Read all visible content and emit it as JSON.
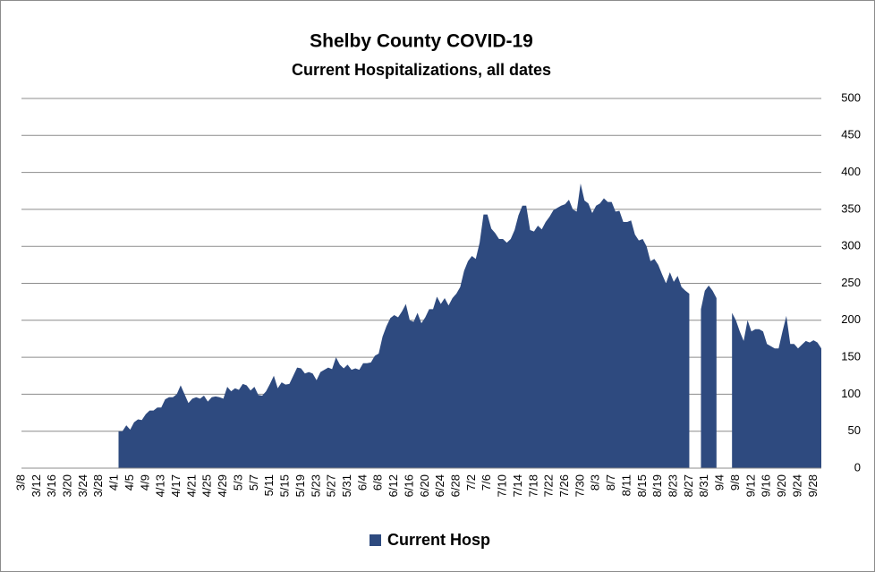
{
  "chart_data": {
    "type": "area",
    "title": "Shelby County COVID-19",
    "subtitle": "Current Hospitalizations, all dates",
    "categories": [
      "3/8",
      null,
      null,
      null,
      "3/12",
      null,
      null,
      null,
      "3/16",
      null,
      null,
      null,
      "3/20",
      null,
      null,
      null,
      "3/24",
      null,
      null,
      null,
      "3/28",
      null,
      null,
      null,
      "4/1",
      null,
      null,
      null,
      "4/5",
      null,
      null,
      null,
      "4/9",
      null,
      null,
      null,
      "4/13",
      null,
      null,
      null,
      "4/17",
      null,
      null,
      null,
      "4/21",
      null,
      null,
      null,
      "4/25",
      null,
      null,
      null,
      "4/29",
      null,
      null,
      null,
      "5/3",
      null,
      null,
      null,
      "5/7",
      null,
      null,
      null,
      "5/11",
      null,
      null,
      null,
      "5/15",
      null,
      null,
      null,
      "5/19",
      null,
      null,
      null,
      "5/23",
      null,
      null,
      null,
      "5/27",
      null,
      null,
      null,
      "5/31",
      null,
      null,
      null,
      "6/4",
      null,
      null,
      null,
      "6/8",
      null,
      null,
      null,
      "6/12",
      null,
      null,
      null,
      "6/16",
      null,
      null,
      null,
      "6/20",
      null,
      null,
      null,
      "6/24",
      null,
      null,
      null,
      "6/28",
      null,
      null,
      null,
      "7/2",
      null,
      null,
      null,
      "7/6",
      null,
      null,
      null,
      "7/10",
      null,
      null,
      null,
      "7/14",
      null,
      null,
      null,
      "7/18",
      null,
      null,
      null,
      "7/22",
      null,
      null,
      null,
      "7/26",
      null,
      null,
      null,
      "7/30",
      null,
      null,
      null,
      "8/3",
      null,
      null,
      null,
      "8/7",
      null,
      null,
      null,
      "8/11",
      null,
      null,
      null,
      "8/15",
      null,
      null,
      null,
      "8/19",
      null,
      null,
      null,
      "8/23",
      null,
      null,
      null,
      "8/27",
      null,
      null,
      null,
      "8/31",
      null,
      null,
      null,
      "9/4",
      null,
      null,
      null,
      "9/8",
      null,
      null,
      null,
      "9/12",
      null,
      null,
      null,
      "9/16",
      null,
      null,
      null,
      "9/20",
      null,
      null,
      null,
      "9/24",
      null,
      null,
      null,
      "9/28",
      null,
      null
    ],
    "series": [
      {
        "name": "Current Hosp",
        "color": "#2e4a7f",
        "values": [
          null,
          null,
          null,
          null,
          null,
          null,
          null,
          null,
          null,
          null,
          null,
          null,
          null,
          null,
          null,
          null,
          null,
          null,
          null,
          null,
          null,
          null,
          null,
          null,
          null,
          50,
          50,
          58,
          52,
          62,
          66,
          65,
          73,
          78,
          78,
          82,
          82,
          93,
          96,
          96,
          100,
          112,
          100,
          88,
          94,
          96,
          94,
          98,
          90,
          96,
          97,
          96,
          94,
          110,
          104,
          108,
          106,
          114,
          112,
          105,
          110,
          99,
          98,
          104,
          114,
          125,
          108,
          116,
          113,
          114,
          125,
          136,
          135,
          128,
          130,
          128,
          119,
          130,
          133,
          136,
          134,
          150,
          140,
          135,
          140,
          133,
          135,
          133,
          142,
          142,
          143,
          152,
          155,
          178,
          192,
          203,
          207,
          204,
          212,
          222,
          200,
          198,
          210,
          196,
          204,
          215,
          215,
          232,
          222,
          230,
          220,
          230,
          236,
          245,
          267,
          280,
          287,
          283,
          305,
          343,
          343,
          324,
          318,
          310,
          310,
          305,
          310,
          322,
          342,
          355,
          355,
          322,
          320,
          328,
          323,
          333,
          340,
          349,
          352,
          355,
          357,
          363,
          350,
          347,
          385,
          362,
          358,
          345,
          355,
          358,
          365,
          360,
          360,
          347,
          348,
          333,
          333,
          335,
          316,
          308,
          310,
          300,
          280,
          283,
          275,
          262,
          250,
          265,
          252,
          260,
          245,
          240,
          236,
          null,
          null,
          215,
          240,
          247,
          240,
          230,
          null,
          null,
          null,
          210,
          200,
          185,
          172,
          200,
          185,
          188,
          188,
          185,
          168,
          165,
          162,
          162,
          185,
          206,
          168,
          168,
          162,
          167,
          172,
          170,
          173,
          170,
          162
        ]
      }
    ],
    "ylim": [
      0,
      500
    ],
    "yticks": [
      0,
      50,
      100,
      150,
      200,
      250,
      300,
      350,
      400,
      450,
      500
    ],
    "grid": true,
    "legend": "bottom"
  }
}
